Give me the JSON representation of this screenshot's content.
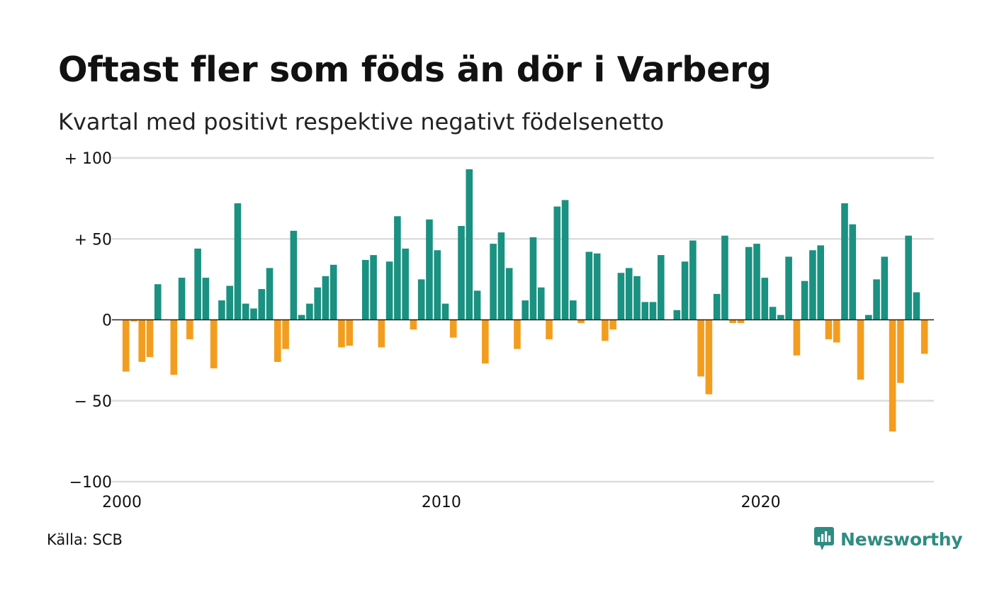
{
  "title": "Oftast fler som föds än dör i Varberg",
  "subtitle": "Kvartal med positivt respektive negativt födelsenetto",
  "source": "Källa: SCB",
  "brand": {
    "name": "Newsworthy",
    "icon": "newsworthy-logo-icon"
  },
  "colors": {
    "positive": "#1a9181",
    "negative": "#f39d1f",
    "grid": "#dddddd",
    "zero_line": "#222222"
  },
  "chart_data": {
    "type": "bar",
    "title": "Oftast fler som föds än dör i Varberg",
    "subtitle": "Kvartal med positivt respektive negativt födelsenetto",
    "ylim": [
      -100,
      100
    ],
    "y_ticks": [
      {
        "value": 100,
        "label": "+ 100"
      },
      {
        "value": 50,
        "label": "+  50"
      },
      {
        "value": 0,
        "label": "0"
      },
      {
        "value": -50,
        "label": "− 50"
      },
      {
        "value": -100,
        "label": "−100"
      }
    ],
    "x_ticks": [
      {
        "value": 2000,
        "label": "2000"
      },
      {
        "value": 2010,
        "label": "2010"
      },
      {
        "value": 2020,
        "label": "2020"
      }
    ],
    "grid": true,
    "start_year": 2000,
    "periods_per_year": 4,
    "values": [
      -32,
      -1,
      -26,
      -23,
      22,
      0,
      -34,
      26,
      -12,
      44,
      26,
      -30,
      12,
      21,
      72,
      10,
      7,
      19,
      32,
      -26,
      -18,
      55,
      3,
      10,
      20,
      27,
      34,
      -17,
      -16,
      0,
      37,
      40,
      -17,
      36,
      64,
      44,
      -6,
      25,
      62,
      43,
      10,
      -11,
      58,
      93,
      18,
      -27,
      47,
      54,
      32,
      -18,
      12,
      51,
      20,
      -12,
      70,
      74,
      12,
      -2,
      42,
      41,
      -13,
      -6,
      29,
      32,
      27,
      11,
      11,
      40,
      0,
      6,
      36,
      49,
      -35,
      -46,
      16,
      52,
      -2,
      -2,
      45,
      47,
      26,
      8,
      3,
      39,
      -22,
      24,
      43,
      46,
      -12,
      -14,
      72,
      59,
      -37,
      3,
      25,
      39,
      -69,
      -39,
      52,
      17,
      -21
    ]
  }
}
